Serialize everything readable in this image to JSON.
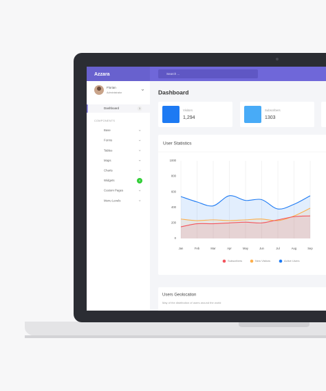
{
  "app": {
    "brand": "Azzara",
    "search": "Search ...",
    "user": {
      "name": "Florian",
      "role": "Administrator"
    },
    "nav": [
      {
        "label": "Dashboard",
        "badge": 1
      }
    ],
    "section": "COMPONENTS",
    "menu": [
      {
        "label": "Base"
      },
      {
        "label": "Forms"
      },
      {
        "label": "Tables"
      },
      {
        "label": "Maps"
      },
      {
        "label": "Charts"
      },
      {
        "label": "Widgets",
        "badge": 4
      },
      {
        "label": "Custom Pages"
      },
      {
        "label": "Menu Levels"
      }
    ],
    "page_title": "Dashboard",
    "cards": [
      {
        "label": "Visitors",
        "value": "1,294"
      },
      {
        "label": "Subscribers",
        "value": "1303"
      }
    ],
    "geo": {
      "title": "Users Geolocation",
      "subtitle": "May of the distribution of users around the world"
    }
  },
  "chart_data": {
    "type": "line",
    "title": "User Statistics",
    "categories": [
      "Jan",
      "Feb",
      "Mar",
      "Apr",
      "May",
      "Jun",
      "Jul",
      "Aug",
      "Sep"
    ],
    "series": [
      {
        "name": "Subscribers",
        "color": "#f3545d",
        "values": [
          150,
          190,
          190,
          200,
          210,
          200,
          240,
          280,
          290
        ]
      },
      {
        "name": "New Visitors",
        "color": "#fdaf4b",
        "values": [
          250,
          230,
          240,
          230,
          240,
          250,
          230,
          290,
          390
        ]
      },
      {
        "name": "Active Users",
        "color": "#1d7af3",
        "values": [
          540,
          470,
          420,
          550,
          490,
          500,
          380,
          440,
          550
        ]
      }
    ],
    "ylim": [
      0,
      1000
    ],
    "yticks": [
      0,
      200,
      400,
      600,
      800,
      1000
    ],
    "grid": "x"
  }
}
